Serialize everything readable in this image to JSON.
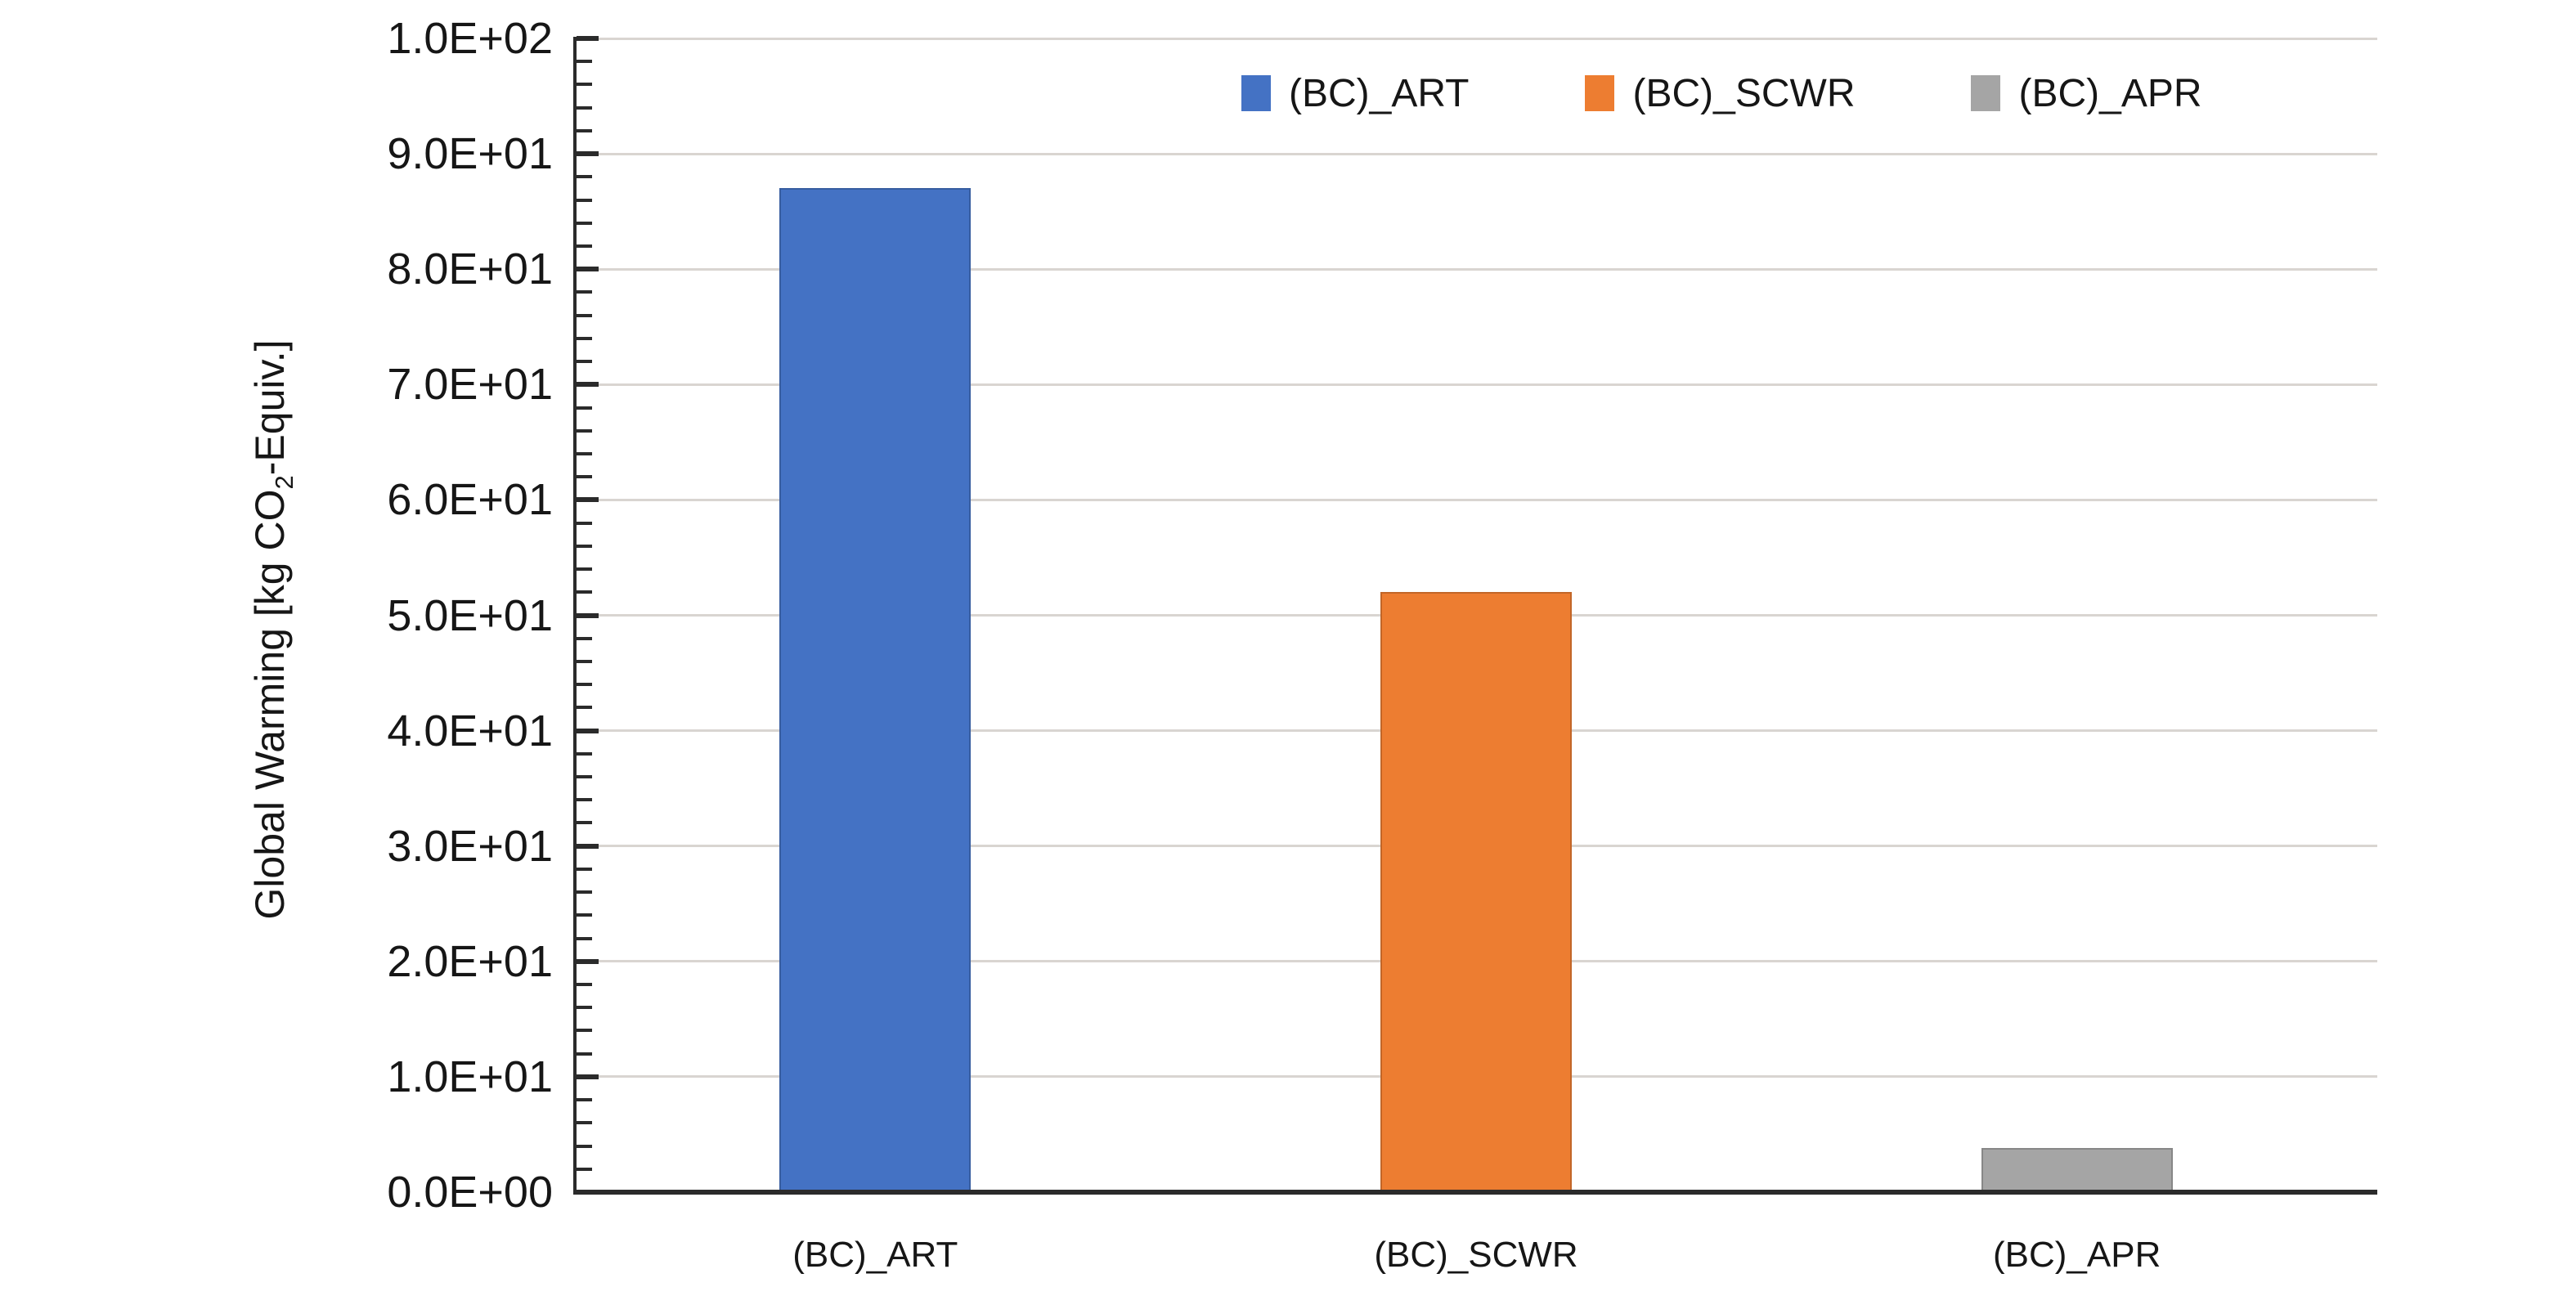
{
  "chart_data": {
    "type": "bar",
    "categories": [
      "(BC)_ART",
      "(BC)_SCWR",
      "(BC)_APR"
    ],
    "values": [
      87,
      52,
      3.8
    ],
    "bar_colors": [
      "#4472C4",
      "#ED7D31",
      "#A5A5A5"
    ],
    "ylabel": "Global Warming [kg CO2-Equiv.]",
    "ylabel_parts": {
      "prefix": "Global Warming [kg CO",
      "sub": "2",
      "suffix": "-Equiv.]"
    },
    "xlabel": "",
    "title": "",
    "ylim": [
      0,
      100
    ],
    "ytick_major_step": 10,
    "ytick_minor_step": 2,
    "ytick_labels": [
      "0.0E+00",
      "1.0E+01",
      "2.0E+01",
      "3.0E+01",
      "4.0E+01",
      "5.0E+01",
      "6.0E+01",
      "7.0E+01",
      "8.0E+01",
      "9.0E+01",
      "1.0E+02"
    ],
    "grid": "horizontal-major",
    "legend": {
      "position": "top-right",
      "entries": [
        {
          "label": "(BC)_ART",
          "color": "#4472C4"
        },
        {
          "label": "(BC)_SCWR",
          "color": "#ED7D31"
        },
        {
          "label": "(BC)_APR",
          "color": "#A5A5A5"
        }
      ]
    },
    "colors": {
      "axis": "#2b2b2b",
      "gridline": "#d9d5d1",
      "text": "#161616",
      "background": "#ffffff"
    }
  }
}
